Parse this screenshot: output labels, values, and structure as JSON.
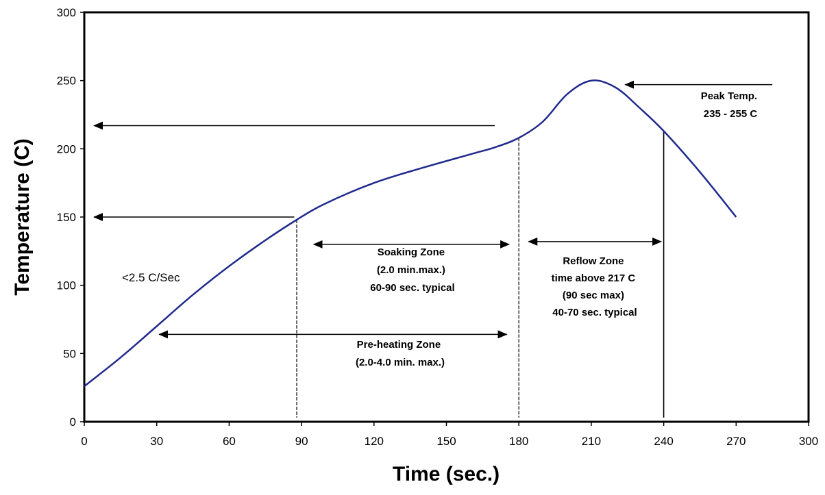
{
  "chart_data": {
    "type": "line",
    "xlabel": "Time (sec.)",
    "ylabel": "Temperature (C)",
    "xlim": [
      0,
      300
    ],
    "ylim": [
      0,
      300
    ],
    "x_ticks": [
      "0",
      "30",
      "60",
      "90",
      "120",
      "150",
      "180",
      "210",
      "240",
      "270",
      "300"
    ],
    "y_ticks": [
      "0",
      "50",
      "100",
      "150",
      "200",
      "250",
      "300"
    ],
    "grid": false,
    "legend": "none",
    "colors": {
      "curve": "#1f2a8c",
      "frame": "#000000"
    },
    "series": [
      {
        "x": [
          0,
          15,
          30,
          45,
          60,
          75,
          88,
          100,
          120,
          140,
          160,
          170,
          180,
          190,
          200,
          210,
          220,
          230,
          240,
          255,
          270
        ],
        "y": [
          26,
          47,
          70,
          93,
          114,
          133,
          148,
          160,
          175,
          186,
          196,
          201,
          208,
          220,
          240,
          250,
          245,
          230,
          213,
          183,
          150
        ]
      }
    ],
    "annotations": [
      {
        "name": "rate",
        "lines": [
          "<2.5 C/Sec"
        ]
      },
      {
        "name": "soaking-zone",
        "lines": [
          "Soaking Zone",
          "(2.0 min.max.)",
          "60-90 sec. typical"
        ]
      },
      {
        "name": "preheating-zone",
        "lines": [
          "Pre-heating Zone",
          "(2.0-4.0 min. max.)"
        ]
      },
      {
        "name": "reflow-zone",
        "lines": [
          "Reflow Zone",
          "time above 217 C",
          "(90 sec max)",
          "40-70 sec. typical"
        ]
      },
      {
        "name": "peak-temp",
        "lines": [
          "Peak Temp.",
          "235 - 255 C"
        ]
      }
    ],
    "arrows": [
      {
        "name": "arrow-217",
        "from": [
          170,
          217
        ],
        "to": [
          4,
          217
        ],
        "heads": "start"
      },
      {
        "name": "arrow-150",
        "from": [
          87,
          150
        ],
        "to": [
          4,
          150
        ],
        "heads": "start"
      },
      {
        "name": "arrow-soaking",
        "from": [
          95,
          130
        ],
        "to": [
          176,
          130
        ],
        "heads": "both"
      },
      {
        "name": "arrow-reflow",
        "from": [
          184,
          132
        ],
        "to": [
          239,
          132
        ],
        "heads": "both"
      },
      {
        "name": "arrow-preheat",
        "from": [
          31,
          64
        ],
        "to": [
          175,
          64
        ],
        "heads": "both"
      },
      {
        "name": "arrow-peak",
        "from": [
          285,
          247
        ],
        "to": [
          224,
          247
        ],
        "heads": "end"
      }
    ],
    "vlines": [
      {
        "name": "vline-88",
        "x": 88,
        "y_top": 148,
        "dashed": true
      },
      {
        "name": "vline-180",
        "x": 180,
        "y_top": 208,
        "dashed": true
      },
      {
        "name": "vline-240",
        "x": 240,
        "y_top": 213,
        "dashed": false
      }
    ]
  }
}
